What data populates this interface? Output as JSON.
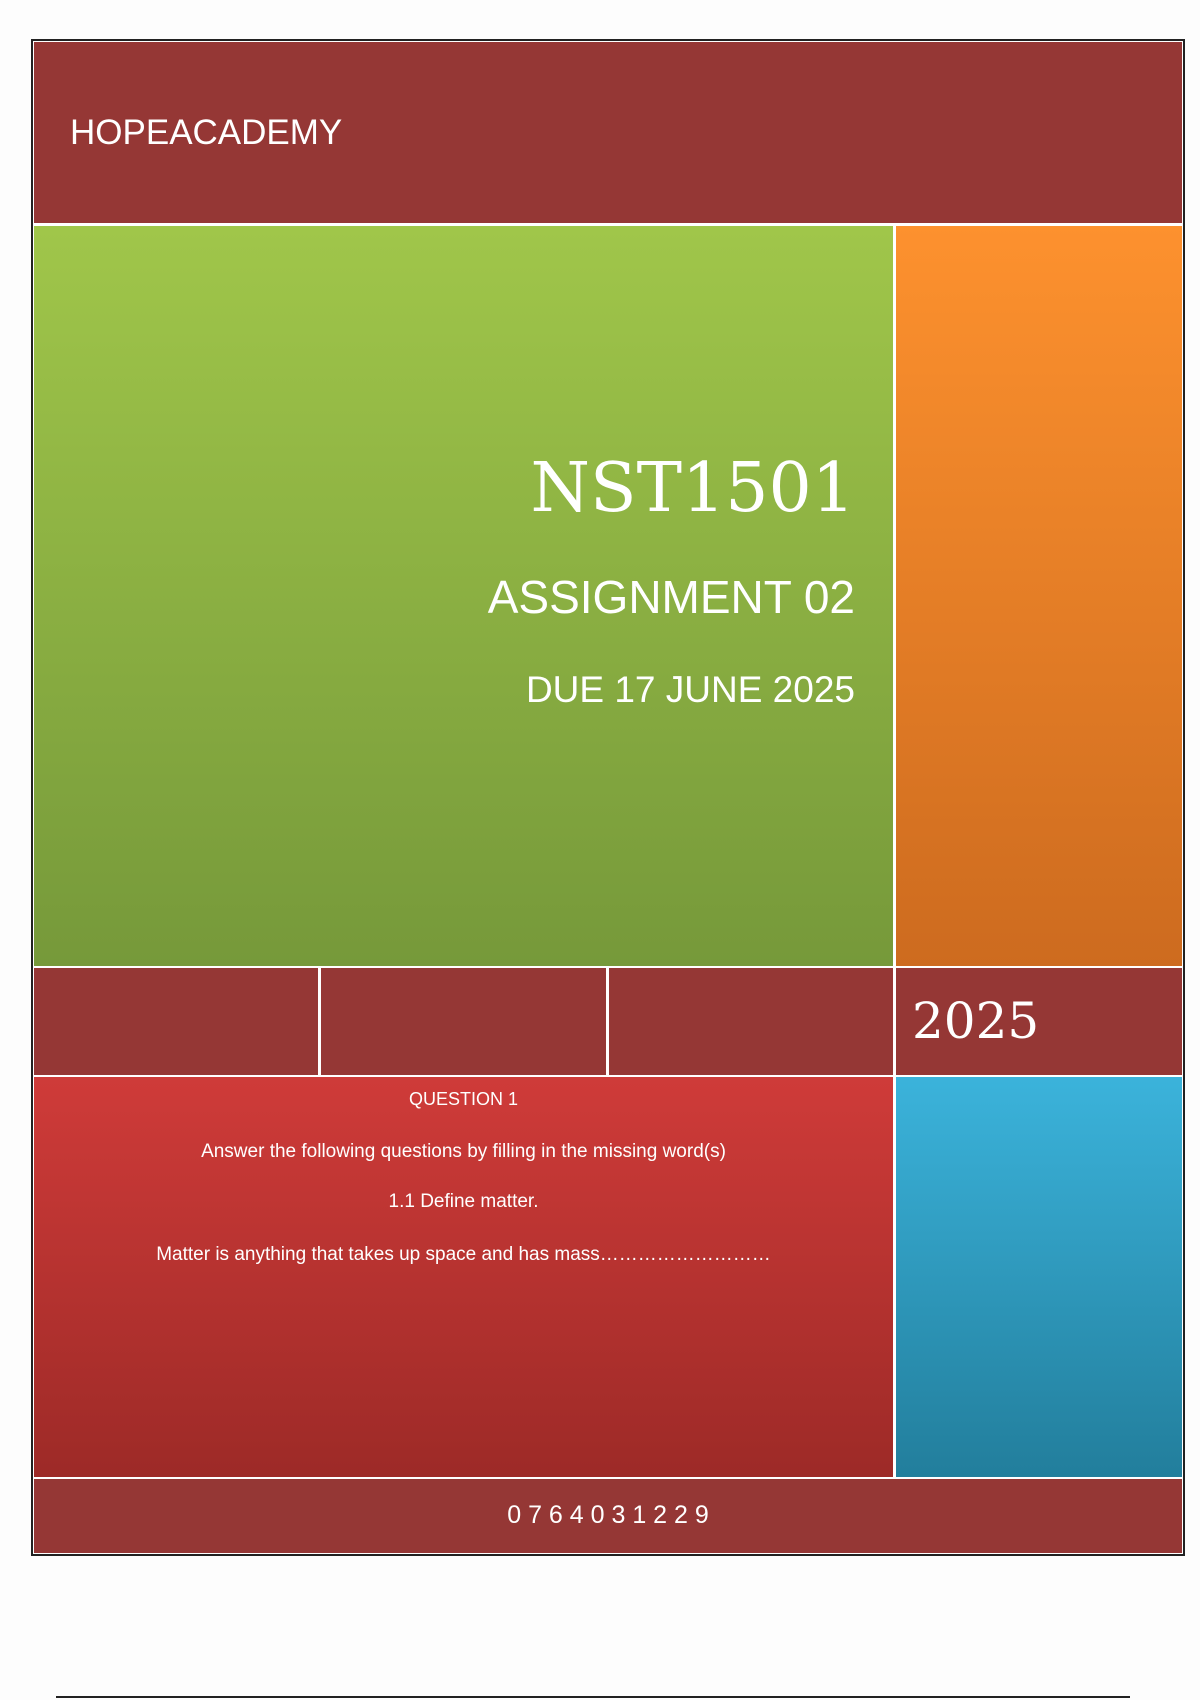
{
  "header": {
    "title": "HOPEACADEMY"
  },
  "cover": {
    "course": "NST1501",
    "assignment": "ASSIGNMENT 02",
    "due": "DUE 17 JUNE 2025",
    "year": "2025"
  },
  "question": {
    "title": "QUESTION 1",
    "instruction": "Answer the following questions by filling in the missing word(s)",
    "item": "1.1 Define matter.",
    "answer": "Matter is anything that takes up space and has mass………………………"
  },
  "footer": {
    "phone": "0 7 6 4 0 3 1 2 2 9"
  }
}
